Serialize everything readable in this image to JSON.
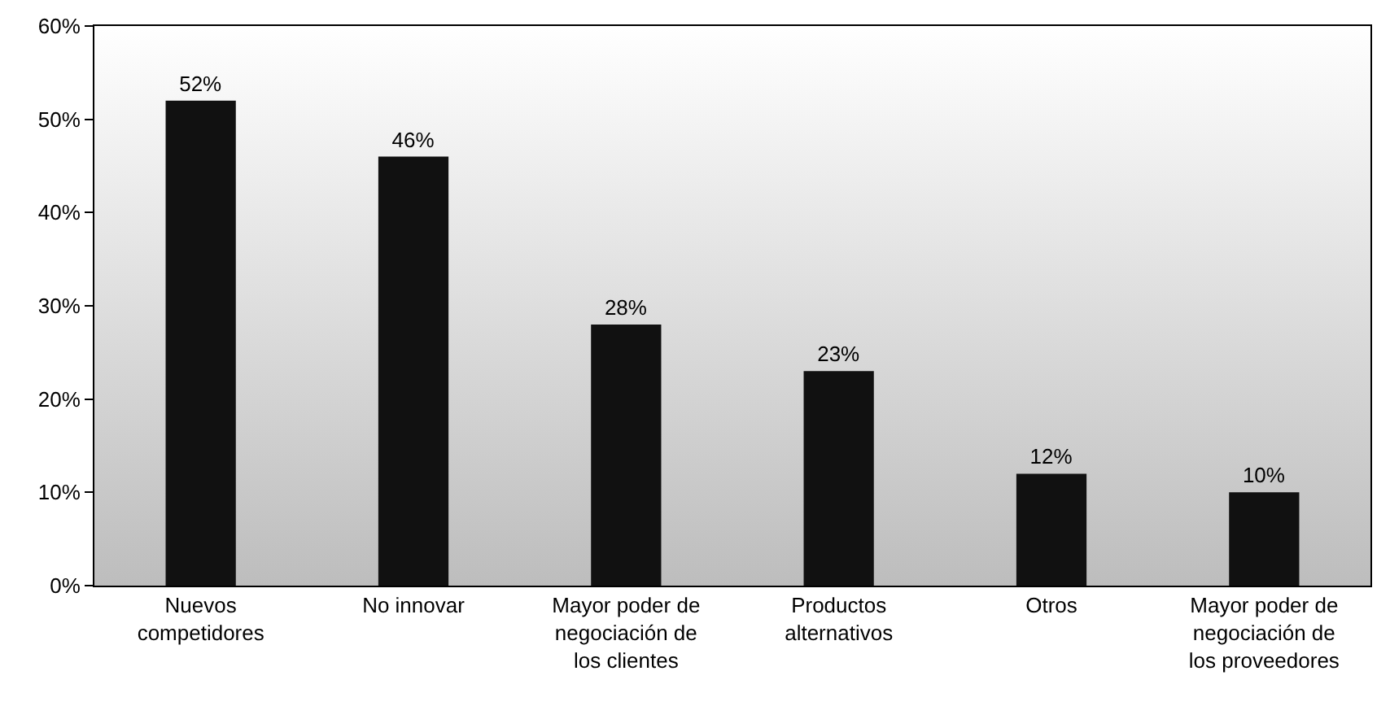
{
  "chart_data": {
    "type": "bar",
    "categories": [
      "Nuevos competidores",
      "No innovar",
      "Mayor poder de negociación de los clientes",
      "Productos alternativos",
      "Otros",
      "Mayor poder de negociación de los proveedores"
    ],
    "values": [
      52,
      46,
      28,
      23,
      12,
      10
    ],
    "value_labels": [
      "52%",
      "46%",
      "28%",
      "23%",
      "12%",
      "10%"
    ],
    "color": "#111111",
    "ylim": [
      0,
      60
    ],
    "yticks": [
      {
        "value": 0,
        "label": "0%"
      },
      {
        "value": 10,
        "label": "10%"
      },
      {
        "value": 20,
        "label": "20%"
      },
      {
        "value": 30,
        "label": "30%"
      },
      {
        "value": 40,
        "label": "40%"
      },
      {
        "value": 50,
        "label": "50%"
      },
      {
        "value": 60,
        "label": "60%"
      }
    ],
    "grid": false
  }
}
